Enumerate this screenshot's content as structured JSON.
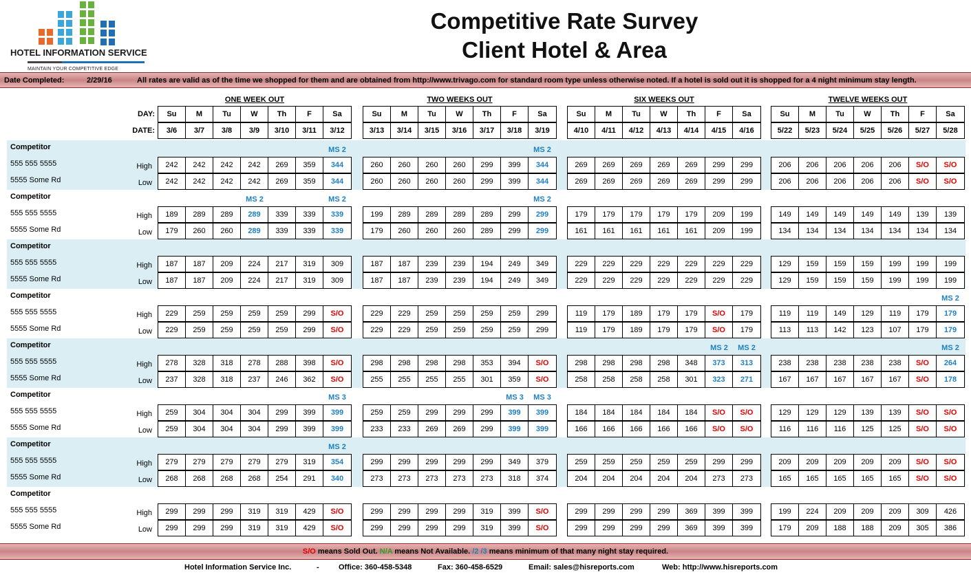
{
  "logo": {
    "name": "HOTEL INFORMATION SERVICE",
    "tagline": "MAINTAIN YOUR COMPETITIVE EDGE"
  },
  "title": {
    "line1": "Competitive Rate Survey",
    "line2": "Client Hotel & Area"
  },
  "info": {
    "date_label": "Date Completed:",
    "date_value": "2/29/16",
    "note": "All rates are valid as of the time we shopped for them and are obtained from http://www.trivago.com for standard room type unless otherwise noted. If a hotel is sold out it is shopped for a 4 night minimum stay length."
  },
  "labels": {
    "day": "DAY:",
    "date": "DATE:",
    "high": "High",
    "low": "Low"
  },
  "days": [
    "Su",
    "M",
    "Tu",
    "W",
    "Th",
    "F",
    "Sa"
  ],
  "blocks": [
    {
      "title": "ONE WEEK OUT",
      "dates": [
        "3/6",
        "3/7",
        "3/8",
        "3/9",
        "3/10",
        "3/11",
        "3/12"
      ]
    },
    {
      "title": "TWO WEEKS OUT",
      "dates": [
        "3/13",
        "3/14",
        "3/15",
        "3/16",
        "3/17",
        "3/18",
        "3/19"
      ]
    },
    {
      "title": "SIX WEEKS OUT",
      "dates": [
        "4/10",
        "4/11",
        "4/12",
        "4/13",
        "4/14",
        "4/15",
        "4/16"
      ]
    },
    {
      "title": "TWELVE WEEKS OUT",
      "dates": [
        "5/22",
        "5/23",
        "5/24",
        "5/25",
        "5/26",
        "5/27",
        "5/28"
      ]
    }
  ],
  "competitors": [
    {
      "name": "Competitor",
      "phone": "555 555 5555",
      "address": "5555 Some Rd",
      "high": [
        [
          242,
          242,
          242,
          242,
          269,
          359,
          344
        ],
        [
          260,
          260,
          260,
          260,
          299,
          399,
          344
        ],
        [
          269,
          269,
          269,
          269,
          269,
          299,
          299
        ],
        [
          206,
          206,
          206,
          206,
          206,
          "S/O",
          "S/O"
        ]
      ],
      "low": [
        [
          242,
          242,
          242,
          242,
          269,
          359,
          344
        ],
        [
          260,
          260,
          260,
          260,
          299,
          399,
          344
        ],
        [
          269,
          269,
          269,
          269,
          269,
          299,
          299
        ],
        [
          206,
          206,
          206,
          206,
          206,
          "S/O",
          "S/O"
        ]
      ],
      "ms": [
        [
          null,
          null,
          null,
          null,
          null,
          null,
          "MS 2"
        ],
        [
          null,
          null,
          null,
          null,
          null,
          null,
          "MS 2"
        ],
        [
          null,
          null,
          null,
          null,
          null,
          null,
          null
        ],
        [
          null,
          null,
          null,
          null,
          null,
          null,
          null
        ]
      ]
    },
    {
      "name": "Competitor",
      "phone": "555 555 5555",
      "address": "5555 Some Rd",
      "high": [
        [
          189,
          289,
          289,
          289,
          339,
          339,
          339
        ],
        [
          199,
          289,
          289,
          289,
          289,
          299,
          299
        ],
        [
          179,
          179,
          179,
          179,
          179,
          209,
          199
        ],
        [
          149,
          149,
          149,
          149,
          149,
          139,
          139
        ]
      ],
      "low": [
        [
          179,
          260,
          260,
          289,
          339,
          339,
          339
        ],
        [
          179,
          260,
          260,
          260,
          289,
          299,
          299
        ],
        [
          161,
          161,
          161,
          161,
          161,
          209,
          199
        ],
        [
          134,
          134,
          134,
          134,
          134,
          134,
          134
        ]
      ],
      "ms": [
        [
          null,
          null,
          null,
          "MS 2",
          null,
          null,
          "MS 2"
        ],
        [
          null,
          null,
          null,
          null,
          null,
          null,
          "MS 2"
        ],
        [
          null,
          null,
          null,
          null,
          null,
          null,
          null
        ],
        [
          null,
          null,
          null,
          null,
          null,
          null,
          null
        ]
      ]
    },
    {
      "name": "Competitor",
      "phone": "555 555 5555",
      "address": "5555 Some Rd",
      "high": [
        [
          187,
          187,
          209,
          224,
          217,
          319,
          309
        ],
        [
          187,
          187,
          239,
          239,
          194,
          249,
          349
        ],
        [
          229,
          229,
          229,
          229,
          229,
          229,
          229
        ],
        [
          129,
          159,
          159,
          159,
          199,
          199,
          199
        ]
      ],
      "low": [
        [
          187,
          187,
          209,
          224,
          217,
          319,
          309
        ],
        [
          187,
          187,
          239,
          239,
          194,
          249,
          349
        ],
        [
          229,
          229,
          229,
          229,
          229,
          229,
          229
        ],
        [
          129,
          159,
          159,
          159,
          199,
          199,
          199
        ]
      ],
      "ms": [
        [
          null,
          null,
          null,
          null,
          null,
          null,
          null
        ],
        [
          null,
          null,
          null,
          null,
          null,
          null,
          null
        ],
        [
          null,
          null,
          null,
          null,
          null,
          null,
          null
        ],
        [
          null,
          null,
          null,
          null,
          null,
          null,
          null
        ]
      ]
    },
    {
      "name": "Competitor",
      "phone": "555 555 5555",
      "address": "5555 Some Rd",
      "high": [
        [
          229,
          259,
          259,
          259,
          259,
          299,
          "S/O"
        ],
        [
          229,
          229,
          259,
          259,
          259,
          259,
          299
        ],
        [
          119,
          179,
          189,
          179,
          179,
          "S/O",
          179
        ],
        [
          119,
          119,
          149,
          129,
          119,
          179,
          179
        ]
      ],
      "low": [
        [
          229,
          259,
          259,
          259,
          259,
          299,
          "S/O"
        ],
        [
          229,
          229,
          259,
          259,
          259,
          259,
          299
        ],
        [
          119,
          179,
          189,
          179,
          179,
          "S/O",
          179
        ],
        [
          113,
          113,
          142,
          123,
          107,
          179,
          179
        ]
      ],
      "ms": [
        [
          null,
          null,
          null,
          null,
          null,
          null,
          null
        ],
        [
          null,
          null,
          null,
          null,
          null,
          null,
          null
        ],
        [
          null,
          null,
          null,
          null,
          null,
          null,
          null
        ],
        [
          null,
          null,
          null,
          null,
          null,
          null,
          "MS 2"
        ]
      ]
    },
    {
      "name": "Competitor",
      "phone": "555 555 5555",
      "address": "5555 Some Rd",
      "high": [
        [
          278,
          328,
          318,
          278,
          288,
          398,
          "S/O"
        ],
        [
          298,
          298,
          298,
          298,
          353,
          394,
          "S/O"
        ],
        [
          298,
          298,
          298,
          298,
          348,
          373,
          313
        ],
        [
          238,
          238,
          238,
          238,
          238,
          "S/O",
          264
        ]
      ],
      "low": [
        [
          237,
          328,
          318,
          237,
          246,
          362,
          "S/O"
        ],
        [
          255,
          255,
          255,
          255,
          301,
          359,
          "S/O"
        ],
        [
          258,
          258,
          258,
          258,
          301,
          323,
          271
        ],
        [
          167,
          167,
          167,
          167,
          167,
          "S/O",
          178
        ]
      ],
      "ms": [
        [
          null,
          null,
          null,
          null,
          null,
          null,
          null
        ],
        [
          null,
          null,
          null,
          null,
          null,
          null,
          null
        ],
        [
          null,
          null,
          null,
          null,
          null,
          "MS 2",
          "MS 2"
        ],
        [
          null,
          null,
          null,
          null,
          null,
          null,
          "MS 2"
        ]
      ]
    },
    {
      "name": "Competitor",
      "phone": "555 555 5555",
      "address": "5555 Some Rd",
      "high": [
        [
          259,
          304,
          304,
          304,
          299,
          399,
          399
        ],
        [
          259,
          259,
          299,
          299,
          299,
          399,
          399
        ],
        [
          184,
          184,
          184,
          184,
          184,
          "S/O",
          "S/O"
        ],
        [
          129,
          129,
          129,
          139,
          139,
          "S/O",
          "S/O"
        ]
      ],
      "low": [
        [
          259,
          304,
          304,
          304,
          299,
          399,
          399
        ],
        [
          233,
          233,
          269,
          269,
          299,
          399,
          399
        ],
        [
          166,
          166,
          166,
          166,
          166,
          "S/O",
          "S/O"
        ],
        [
          116,
          116,
          116,
          125,
          125,
          "S/O",
          "S/O"
        ]
      ],
      "ms": [
        [
          null,
          null,
          null,
          null,
          null,
          null,
          "MS 3"
        ],
        [
          null,
          null,
          null,
          null,
          null,
          "MS 3",
          "MS 3"
        ],
        [
          null,
          null,
          null,
          null,
          null,
          null,
          null
        ],
        [
          null,
          null,
          null,
          null,
          null,
          null,
          null
        ]
      ]
    },
    {
      "name": "Competitor",
      "phone": "555 555 5555",
      "address": "5555 Some Rd",
      "high": [
        [
          279,
          279,
          279,
          279,
          279,
          319,
          354
        ],
        [
          299,
          299,
          299,
          299,
          299,
          349,
          379
        ],
        [
          259,
          259,
          259,
          259,
          259,
          299,
          299
        ],
        [
          209,
          209,
          209,
          209,
          209,
          "S/O",
          "S/O"
        ]
      ],
      "low": [
        [
          268,
          268,
          268,
          268,
          254,
          291,
          340
        ],
        [
          273,
          273,
          273,
          273,
          273,
          318,
          374
        ],
        [
          204,
          204,
          204,
          204,
          204,
          273,
          273
        ],
        [
          165,
          165,
          165,
          165,
          165,
          "S/O",
          "S/O"
        ]
      ],
      "ms": [
        [
          null,
          null,
          null,
          null,
          null,
          null,
          "MS 2"
        ],
        [
          null,
          null,
          null,
          null,
          null,
          null,
          null
        ],
        [
          null,
          null,
          null,
          null,
          null,
          null,
          null
        ],
        [
          null,
          null,
          null,
          null,
          null,
          null,
          null
        ]
      ]
    },
    {
      "name": "Competitor",
      "phone": "555 555 5555",
      "address": "5555 Some Rd",
      "high": [
        [
          299,
          299,
          299,
          319,
          319,
          429,
          "S/O"
        ],
        [
          299,
          299,
          299,
          299,
          319,
          399,
          "S/O"
        ],
        [
          299,
          299,
          299,
          299,
          369,
          399,
          399
        ],
        [
          199,
          224,
          209,
          209,
          209,
          309,
          426
        ]
      ],
      "low": [
        [
          299,
          299,
          299,
          319,
          319,
          429,
          "S/O"
        ],
        [
          299,
          299,
          299,
          299,
          319,
          399,
          "S/O"
        ],
        [
          299,
          299,
          299,
          299,
          369,
          399,
          399
        ],
        [
          179,
          209,
          188,
          188,
          209,
          305,
          386
        ]
      ],
      "ms": [
        [
          null,
          null,
          null,
          null,
          null,
          null,
          null
        ],
        [
          null,
          null,
          null,
          null,
          null,
          null,
          null
        ],
        [
          null,
          null,
          null,
          null,
          null,
          null,
          null
        ],
        [
          null,
          null,
          null,
          null,
          null,
          null,
          null
        ]
      ]
    }
  ],
  "legend": {
    "so": "S/O",
    "so_text": " means Sold Out. ",
    "na": "N/A",
    "na_text": " means Not Available. ",
    "ms": "/2 /3",
    "ms_text": " means minimum of that many night stay required."
  },
  "contact": {
    "company": "Hotel Information Service Inc.",
    "dash": "-",
    "office": "Office: 360-458-5348",
    "fax": "Fax: 360-458-6529",
    "email": "Email: sales@hisreports.com",
    "web": "Web: http://www.hisreports.com"
  },
  "colors": {
    "sold_out": "#e00000",
    "min_stay": "#1f7fc1",
    "band": "#daeef3",
    "bar": "#c98585"
  }
}
